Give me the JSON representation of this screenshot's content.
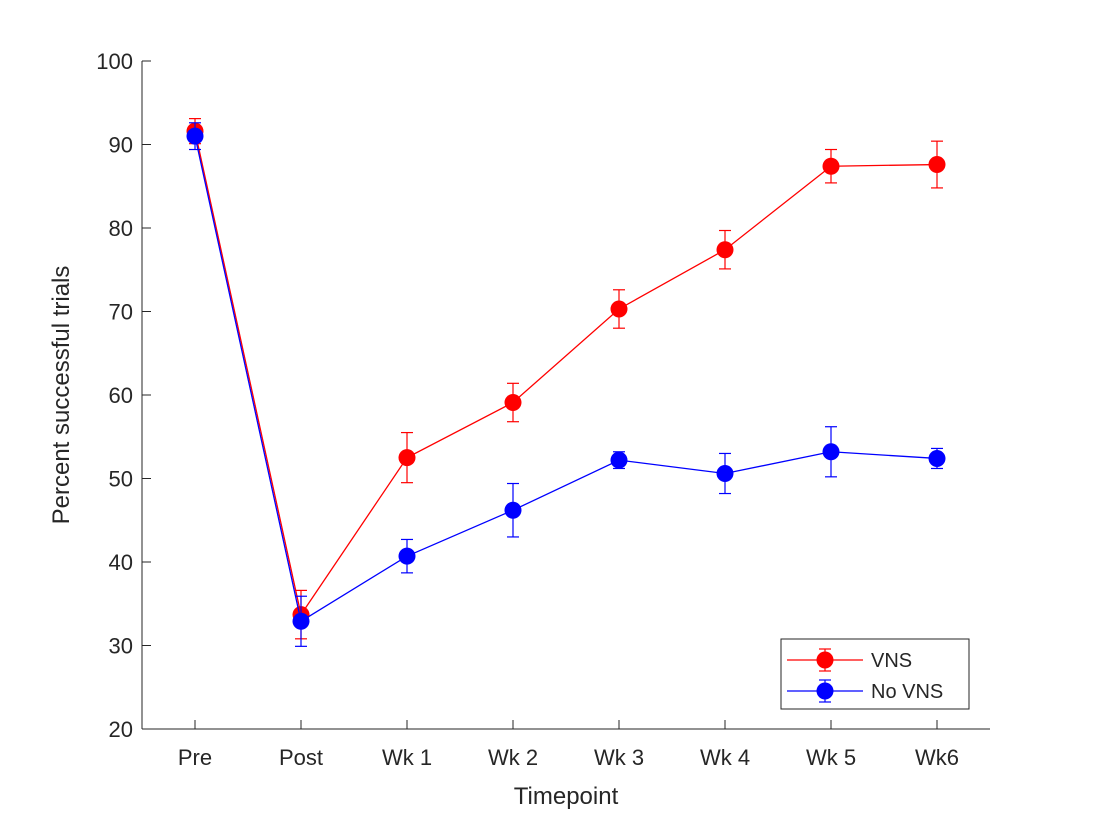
{
  "chart_data": {
    "type": "line",
    "title": "",
    "xlabel": "Timepoint",
    "ylabel": "Percent successful trials",
    "categories": [
      "Pre",
      "Post",
      "Wk 1",
      "Wk 2",
      "Wk 3",
      "Wk 4",
      "Wk 5",
      "Wk6"
    ],
    "ylim": [
      20,
      100
    ],
    "yticks": [
      20,
      30,
      40,
      50,
      60,
      70,
      80,
      90,
      100
    ],
    "grid": false,
    "legend_position": "bottom-right",
    "error_bars": true,
    "series": [
      {
        "name": "VNS",
        "color": "#ff0000",
        "values": [
          91.6,
          33.7,
          52.5,
          59.1,
          70.3,
          77.4,
          87.4,
          87.6
        ],
        "errors": [
          1.5,
          2.9,
          3.0,
          2.3,
          2.3,
          2.3,
          2.0,
          2.8
        ]
      },
      {
        "name": "No VNS",
        "color": "#0000ff",
        "values": [
          91.0,
          32.9,
          40.7,
          46.2,
          52.2,
          50.6,
          53.2,
          52.4
        ],
        "errors": [
          1.6,
          3.0,
          2.0,
          3.2,
          1.0,
          2.4,
          3.0,
          1.2
        ]
      }
    ]
  }
}
